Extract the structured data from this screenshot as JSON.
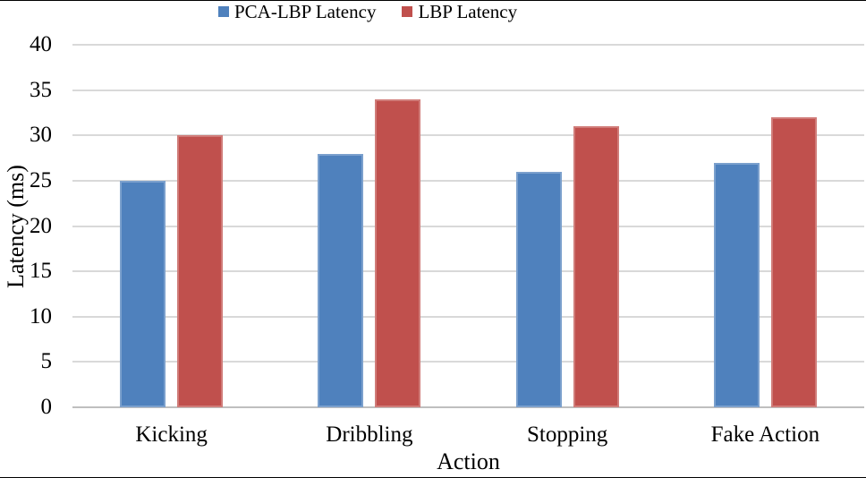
{
  "figure": {
    "background": "#ffffff",
    "rule_color": "#000000"
  },
  "chart_data": {
    "type": "bar",
    "title": "",
    "categories": [
      "Kicking",
      "Dribbling",
      "Stopping",
      "Fake Action"
    ],
    "series": [
      {
        "name": "PCA-LBP Latency",
        "color": "#4F81BD",
        "values": [
          25,
          28,
          26,
          27
        ]
      },
      {
        "name": "LBP Latency",
        "color": "#C0504D",
        "values": [
          30,
          34,
          31,
          32
        ]
      }
    ],
    "xlabel": "Action",
    "ylabel": "Latency (ms)",
    "ylim": [
      0,
      40
    ],
    "yticks": [
      0,
      5,
      10,
      15,
      20,
      25,
      30,
      35,
      40
    ],
    "grid": "horizontal",
    "gridline_color": "#D9D9D9",
    "axis_line_color": "#BFBFBF",
    "legend_position": "top-center"
  }
}
